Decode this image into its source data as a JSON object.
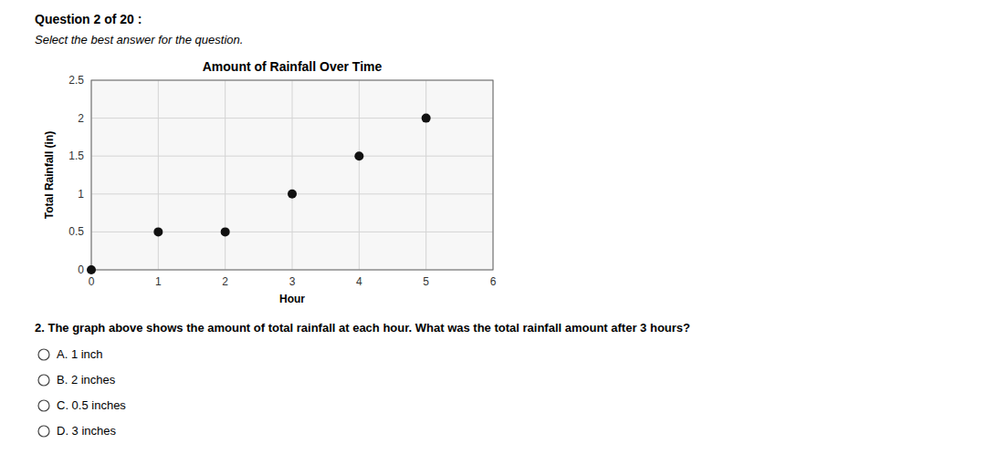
{
  "chart_data": {
    "type": "scatter",
    "title": "Amount of Rainfall Over Time",
    "xlabel": "Hour",
    "ylabel": "Total Rainfall (in)",
    "x": [
      0,
      1,
      2,
      3,
      4,
      5
    ],
    "values": [
      0,
      0.5,
      0.5,
      1,
      1.5,
      2
    ],
    "color": "#111111",
    "xlim": [
      0,
      6
    ],
    "ylim": [
      0,
      2.5
    ],
    "xticks": [
      0,
      1,
      2,
      3,
      4,
      5,
      6
    ],
    "yticks": [
      0,
      0.5,
      1,
      1.5,
      2,
      2.5
    ],
    "grid": true,
    "annotations": [
      "Question 2 of 20 :",
      "Select the best answer for the question.",
      "2.  The graph above shows the amount of total rainfall at each hour. What was the total rainfall amount after 3 hours?",
      "A. 1 inch",
      "B. 2 inches",
      "C. 0.5 inches",
      "D. 3 inches"
    ]
  }
}
